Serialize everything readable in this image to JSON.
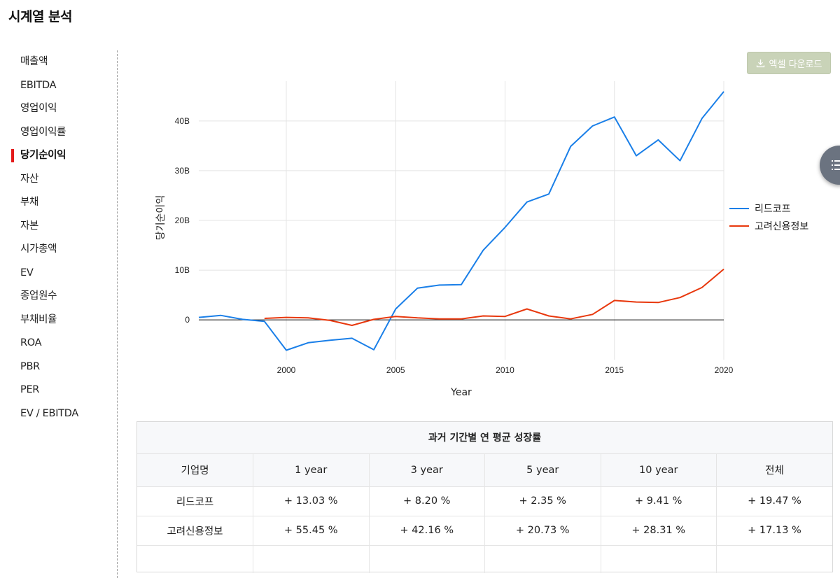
{
  "page_title": "시계열 분석",
  "sidebar": {
    "items": [
      {
        "label": "매출액",
        "active": false
      },
      {
        "label": "EBITDA",
        "active": false
      },
      {
        "label": "영업이익",
        "active": false
      },
      {
        "label": "영업이익률",
        "active": false
      },
      {
        "label": "당기순이익",
        "active": true
      },
      {
        "label": "자산",
        "active": false
      },
      {
        "label": "부채",
        "active": false
      },
      {
        "label": "자본",
        "active": false
      },
      {
        "label": "시가총액",
        "active": false
      },
      {
        "label": "EV",
        "active": false
      },
      {
        "label": "종업원수",
        "active": false
      },
      {
        "label": "부채비율",
        "active": false
      },
      {
        "label": "ROA",
        "active": false
      },
      {
        "label": "PBR",
        "active": false
      },
      {
        "label": "PER",
        "active": false
      },
      {
        "label": "EV / EBITDA",
        "active": false
      }
    ]
  },
  "toolbar": {
    "excel_label": "엑셀 다운로드",
    "excel_icon": "download-icon"
  },
  "fab": {
    "icon": "list-icon"
  },
  "colors": {
    "series_1": "#1a7fe8",
    "series_2": "#e8380d",
    "accent": "#e41a1a",
    "button": "#c9d3b8"
  },
  "chart_data": {
    "type": "line",
    "xlabel": "Year",
    "ylabel": "당기순이익",
    "xlim": [
      1996,
      2020
    ],
    "ylim": [
      -8,
      48
    ],
    "x_ticks": [
      2000,
      2005,
      2010,
      2015,
      2020
    ],
    "y_ticks": [
      0,
      10,
      20,
      30,
      40
    ],
    "y_tick_labels": [
      "0",
      "10B",
      "20B",
      "30B",
      "40B"
    ],
    "grid": true,
    "legend_position": "right",
    "unit": "B",
    "series": [
      {
        "name": "리드코프",
        "color": "#1a7fe8",
        "x": [
          1996,
          1997,
          1998,
          1999,
          2000,
          2001,
          2002,
          2003,
          2004,
          2005,
          2006,
          2007,
          2008,
          2009,
          2010,
          2011,
          2012,
          2013,
          2014,
          2015,
          2016,
          2017,
          2018,
          2019,
          2020
        ],
        "y": [
          0.5,
          0.9,
          0.1,
          -0.3,
          -6.1,
          -4.6,
          -4.1,
          -3.7,
          -6.0,
          2.2,
          6.4,
          7.0,
          7.1,
          14.0,
          18.6,
          23.7,
          25.3,
          34.9,
          39.0,
          40.8,
          33.0,
          36.2,
          32.0,
          40.5,
          45.9
        ]
      },
      {
        "name": "고려신용정보",
        "color": "#e8380d",
        "x": [
          1999,
          2000,
          2001,
          2002,
          2003,
          2004,
          2005,
          2006,
          2007,
          2008,
          2009,
          2010,
          2011,
          2012,
          2013,
          2014,
          2015,
          2016,
          2017,
          2018,
          2019,
          2020
        ],
        "y": [
          0.3,
          0.5,
          0.4,
          -0.1,
          -1.1,
          0.1,
          0.7,
          0.4,
          0.2,
          0.2,
          0.8,
          0.7,
          2.2,
          0.8,
          0.2,
          1.1,
          3.9,
          3.6,
          3.5,
          4.5,
          6.5,
          10.2
        ]
      }
    ]
  },
  "growth_table": {
    "title": "과거 기간별 연 평균 성장률",
    "headers": [
      "기업명",
      "1 year",
      "3 year",
      "5 year",
      "10 year",
      "전체"
    ],
    "rows": [
      [
        "리드코프",
        "+ 13.03 %",
        "+ 8.20 %",
        "+ 2.35 %",
        "+ 9.41 %",
        "+ 19.47 %"
      ],
      [
        "고려신용정보",
        "+ 55.45 %",
        "+ 42.16 %",
        "+ 20.73 %",
        "+ 28.31 %",
        "+ 17.13 %"
      ]
    ]
  }
}
